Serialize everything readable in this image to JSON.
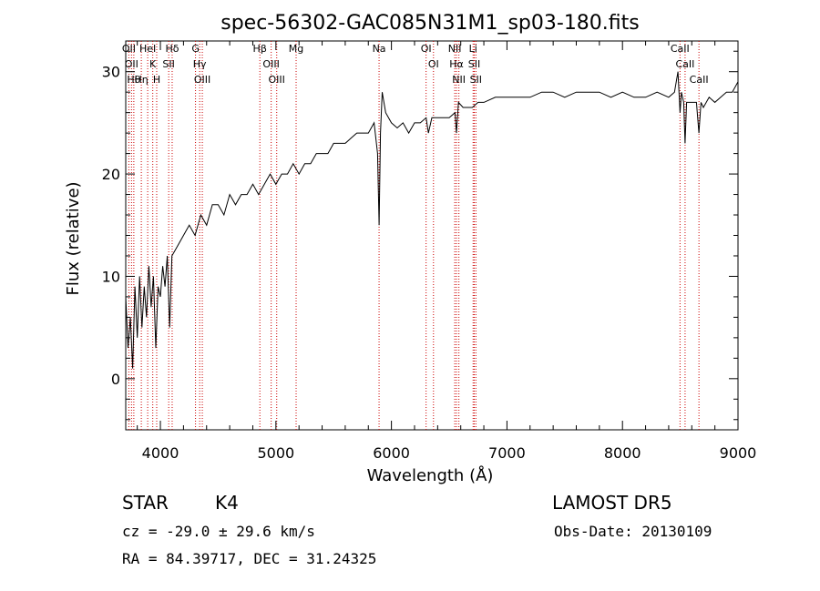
{
  "chart_data": {
    "type": "line",
    "title": "spec-56302-GAC085N31M1_sp03-180.fits",
    "xlabel": "Wavelength (Å)",
    "ylabel": "Flux (relative)",
    "xlim": [
      3700,
      9000
    ],
    "ylim": [
      -5,
      33
    ],
    "xticks": [
      4000,
      5000,
      6000,
      7000,
      8000,
      9000
    ],
    "yticks": [
      0,
      10,
      20,
      30
    ],
    "grid": false,
    "series": [
      {
        "points": [
          [
            3700,
            8
          ],
          [
            3720,
            3
          ],
          [
            3740,
            6
          ],
          [
            3760,
            1
          ],
          [
            3780,
            9
          ],
          [
            3800,
            4
          ],
          [
            3820,
            10
          ],
          [
            3840,
            5
          ],
          [
            3860,
            9
          ],
          [
            3880,
            6
          ],
          [
            3900,
            11
          ],
          [
            3920,
            7
          ],
          [
            3940,
            10
          ],
          [
            3960,
            3
          ],
          [
            3980,
            9
          ],
          [
            4000,
            8
          ],
          [
            4020,
            11
          ],
          [
            4040,
            9
          ],
          [
            4060,
            12
          ],
          [
            4080,
            5
          ],
          [
            4100,
            12
          ],
          [
            4150,
            13
          ],
          [
            4200,
            14
          ],
          [
            4250,
            15
          ],
          [
            4300,
            14
          ],
          [
            4350,
            16
          ],
          [
            4400,
            15
          ],
          [
            4450,
            17
          ],
          [
            4500,
            17
          ],
          [
            4550,
            16
          ],
          [
            4600,
            18
          ],
          [
            4650,
            17
          ],
          [
            4700,
            18
          ],
          [
            4750,
            18
          ],
          [
            4800,
            19
          ],
          [
            4850,
            18
          ],
          [
            4900,
            19
          ],
          [
            4950,
            20
          ],
          [
            5000,
            19
          ],
          [
            5050,
            20
          ],
          [
            5100,
            20
          ],
          [
            5150,
            21
          ],
          [
            5200,
            20
          ],
          [
            5250,
            21
          ],
          [
            5300,
            21
          ],
          [
            5350,
            22
          ],
          [
            5400,
            22
          ],
          [
            5450,
            22
          ],
          [
            5500,
            23
          ],
          [
            5550,
            23
          ],
          [
            5600,
            23
          ],
          [
            5650,
            23.5
          ],
          [
            5700,
            24
          ],
          [
            5750,
            24
          ],
          [
            5800,
            24
          ],
          [
            5850,
            25
          ],
          [
            5880,
            22
          ],
          [
            5893,
            15
          ],
          [
            5905,
            24
          ],
          [
            5920,
            28
          ],
          [
            5950,
            26
          ],
          [
            6000,
            25
          ],
          [
            6050,
            24.5
          ],
          [
            6100,
            25
          ],
          [
            6150,
            24
          ],
          [
            6200,
            25
          ],
          [
            6250,
            25
          ],
          [
            6300,
            25.5
          ],
          [
            6320,
            24
          ],
          [
            6350,
            25.5
          ],
          [
            6400,
            25.5
          ],
          [
            6450,
            25.5
          ],
          [
            6500,
            25.5
          ],
          [
            6550,
            26
          ],
          [
            6563,
            24
          ],
          [
            6580,
            27
          ],
          [
            6620,
            26.5
          ],
          [
            6650,
            26.5
          ],
          [
            6700,
            26.5
          ],
          [
            6750,
            27
          ],
          [
            6800,
            27
          ],
          [
            6900,
            27.5
          ],
          [
            7000,
            27.5
          ],
          [
            7100,
            27.5
          ],
          [
            7200,
            27.5
          ],
          [
            7300,
            28
          ],
          [
            7400,
            28
          ],
          [
            7500,
            27.5
          ],
          [
            7600,
            28
          ],
          [
            7700,
            28
          ],
          [
            7800,
            28
          ],
          [
            7900,
            27.5
          ],
          [
            8000,
            28
          ],
          [
            8100,
            27.5
          ],
          [
            8200,
            27.5
          ],
          [
            8300,
            28
          ],
          [
            8400,
            27.5
          ],
          [
            8450,
            28
          ],
          [
            8480,
            30
          ],
          [
            8498,
            26
          ],
          [
            8510,
            28
          ],
          [
            8530,
            27
          ],
          [
            8542,
            23
          ],
          [
            8555,
            27
          ],
          [
            8600,
            27
          ],
          [
            8640,
            27
          ],
          [
            8662,
            24
          ],
          [
            8680,
            27
          ],
          [
            8700,
            26.5
          ],
          [
            8750,
            27.5
          ],
          [
            8800,
            27
          ],
          [
            8850,
            27.5
          ],
          [
            8900,
            28
          ],
          [
            8950,
            28
          ],
          [
            9000,
            29
          ]
        ]
      }
    ],
    "line_markers": [
      {
        "wavelength": 3727,
        "labels": [
          "OII"
        ]
      },
      {
        "wavelength": 3750,
        "labels": [
          "OII"
        ]
      },
      {
        "wavelength": 3770,
        "labels": [
          "Hθ"
        ]
      },
      {
        "wavelength": 3835,
        "labels": [
          "Hη"
        ]
      },
      {
        "wavelength": 3890,
        "labels": [
          "HeI"
        ]
      },
      {
        "wavelength": 3934,
        "labels": [
          "K"
        ]
      },
      {
        "wavelength": 3968,
        "labels": [
          "H"
        ]
      },
      {
        "wavelength": 4102,
        "labels": [
          "Hδ"
        ]
      },
      {
        "wavelength": 4072,
        "labels": [
          "SII"
        ]
      },
      {
        "wavelength": 4304,
        "labels": [
          "G"
        ]
      },
      {
        "wavelength": 4340,
        "labels": [
          "Hγ"
        ]
      },
      {
        "wavelength": 4363,
        "labels": [
          "OIII"
        ]
      },
      {
        "wavelength": 4861,
        "labels": [
          "Hβ"
        ]
      },
      {
        "wavelength": 4959,
        "labels": [
          "OIII"
        ]
      },
      {
        "wavelength": 5007,
        "labels": [
          "OIII"
        ]
      },
      {
        "wavelength": 5175,
        "labels": [
          "Mg"
        ]
      },
      {
        "wavelength": 5893,
        "labels": [
          "Na"
        ]
      },
      {
        "wavelength": 6300,
        "labels": [
          "OI"
        ]
      },
      {
        "wavelength": 6364,
        "labels": [
          "OI"
        ]
      },
      {
        "wavelength": 6548,
        "labels": [
          "NII"
        ]
      },
      {
        "wavelength": 6563,
        "labels": [
          "Hα"
        ]
      },
      {
        "wavelength": 6584,
        "labels": [
          "NII"
        ]
      },
      {
        "wavelength": 6707,
        "labels": [
          "Li"
        ]
      },
      {
        "wavelength": 6717,
        "labels": [
          "SII"
        ]
      },
      {
        "wavelength": 6731,
        "labels": [
          "SII"
        ]
      },
      {
        "wavelength": 8498,
        "labels": [
          "CaII"
        ]
      },
      {
        "wavelength": 8542,
        "labels": [
          "CaII"
        ]
      },
      {
        "wavelength": 8662,
        "labels": [
          "CaII"
        ]
      }
    ],
    "marker_color": "#cc0000",
    "line_color": "#000000"
  },
  "info": {
    "class_label": "STAR",
    "subclass_label": "K4",
    "survey": "LAMOST DR5",
    "cz": "cz = -29.0 ± 29.6 km/s",
    "obs_date": "Obs-Date: 20130109",
    "radec": "RA =  84.39717, DEC =  31.24325"
  }
}
